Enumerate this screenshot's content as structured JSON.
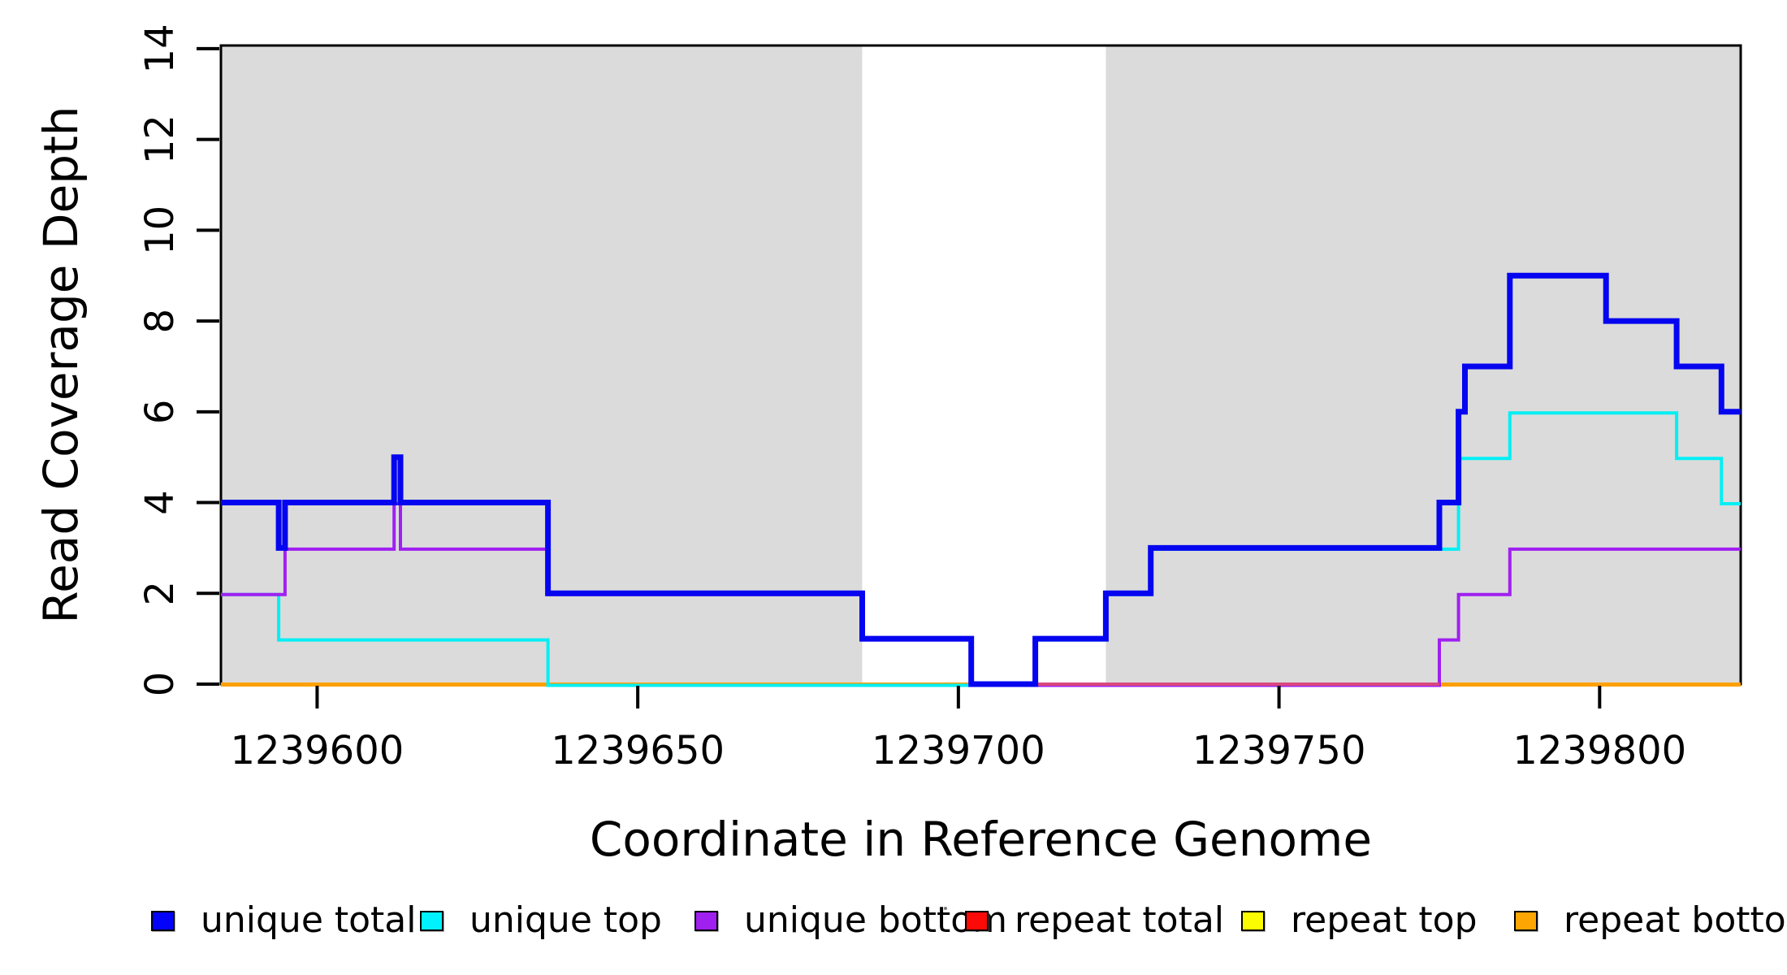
{
  "chart_data": {
    "type": "line",
    "subtype": "step-after-coverage-plot",
    "title": "",
    "xlabel": "Coordinate in Reference Genome",
    "ylabel": "Read Coverage Depth",
    "axes": {
      "x": {
        "range": [
          1239585,
          1239822
        ],
        "ticks": [
          {
            "value": 1239600,
            "label": "1239600"
          },
          {
            "value": 1239650,
            "label": "1239650"
          },
          {
            "value": 1239700,
            "label": "1239700"
          },
          {
            "value": 1239750,
            "label": "1239750"
          },
          {
            "value": 1239800,
            "label": "1239800"
          }
        ]
      },
      "y": {
        "range": [
          0,
          14
        ],
        "ticks": [
          {
            "value": 0,
            "label": "0"
          },
          {
            "value": 2,
            "label": "2"
          },
          {
            "value": 4,
            "label": "4"
          },
          {
            "value": 6,
            "label": "6"
          },
          {
            "value": 8,
            "label": "8"
          },
          {
            "value": 10,
            "label": "10"
          },
          {
            "value": 12,
            "label": "12"
          },
          {
            "value": 14,
            "label": "14"
          }
        ]
      }
    },
    "grid": false,
    "highlight_regions": [
      {
        "name": "repeat-region-left",
        "from": 1239585,
        "to": 1239685,
        "color": "#dbdbdb"
      },
      {
        "name": "repeat-region-right",
        "from": 1239723,
        "to": 1239822,
        "color": "#dbdbdb"
      }
    ],
    "series": [
      {
        "id": "unique_total",
        "name": "unique total",
        "color": "#0505f0",
        "steps": [
          [
            1239585,
            4
          ],
          [
            1239594,
            3
          ],
          [
            1239595,
            4
          ],
          [
            1239612,
            5
          ],
          [
            1239613,
            4
          ],
          [
            1239636,
            2
          ],
          [
            1239685,
            1
          ],
          [
            1239702,
            0
          ],
          [
            1239712,
            1
          ],
          [
            1239723,
            2
          ],
          [
            1239730,
            3
          ],
          [
            1239775,
            4
          ],
          [
            1239778,
            6
          ],
          [
            1239779,
            7
          ],
          [
            1239786,
            9
          ],
          [
            1239801,
            8
          ],
          [
            1239812,
            7
          ],
          [
            1239819,
            6
          ]
        ],
        "end": 1239822
      },
      {
        "id": "unique_top",
        "name": "unique top",
        "color": "#00eff5",
        "steps": [
          [
            1239585,
            2
          ],
          [
            1239594,
            1
          ],
          [
            1239636,
            0
          ],
          [
            1239712,
            1
          ],
          [
            1239723,
            2
          ],
          [
            1239730,
            3
          ],
          [
            1239778,
            5
          ],
          [
            1239786,
            6
          ],
          [
            1239812,
            5
          ],
          [
            1239819,
            4
          ]
        ],
        "end": 1239822
      },
      {
        "id": "unique_bottom",
        "name": "unique bottom",
        "color": "#a020f0",
        "steps": [
          [
            1239585,
            2
          ],
          [
            1239595,
            3
          ],
          [
            1239612,
            4
          ],
          [
            1239613,
            3
          ],
          [
            1239636,
            2
          ],
          [
            1239685,
            1
          ],
          [
            1239702,
            0
          ],
          [
            1239775,
            1
          ],
          [
            1239778,
            2
          ],
          [
            1239786,
            3
          ]
        ],
        "end": 1239822
      },
      {
        "id": "repeat_total",
        "name": "repeat total",
        "color": "#f50a05",
        "steps": [
          [
            1239585,
            0
          ]
        ],
        "end": 1239822
      },
      {
        "id": "repeat_top",
        "name": "repeat top",
        "color": "#f7f700",
        "steps": [
          [
            1239585,
            0
          ]
        ],
        "end": 1239822
      },
      {
        "id": "repeat_bottom",
        "name": "repeat bottom",
        "color": "#ffa005",
        "steps": [
          [
            1239585,
            0
          ]
        ],
        "end": 1239822
      }
    ],
    "baseline_overlay": {
      "note": "visible blended color of overlapping zero-depth lines between gap and right repeat region",
      "from": 1239712,
      "to": 1239775,
      "value": 0,
      "color": "#d9487e"
    },
    "legend": {
      "position": "bottom-horizontal",
      "items": [
        {
          "label": "unique total",
          "color": "#0303fa"
        },
        {
          "label": "unique top",
          "color": "#00f2ff"
        },
        {
          "label": "unique bottom",
          "color": "#a020f0"
        },
        {
          "label": "repeat total",
          "color": "#fb0a07"
        },
        {
          "label": "repeat top",
          "color": "#fbfb02"
        },
        {
          "label": "repeat bottom",
          "color": "#fca503"
        }
      ]
    },
    "frame_color": "#000000",
    "background_color": "#ffffff"
  }
}
